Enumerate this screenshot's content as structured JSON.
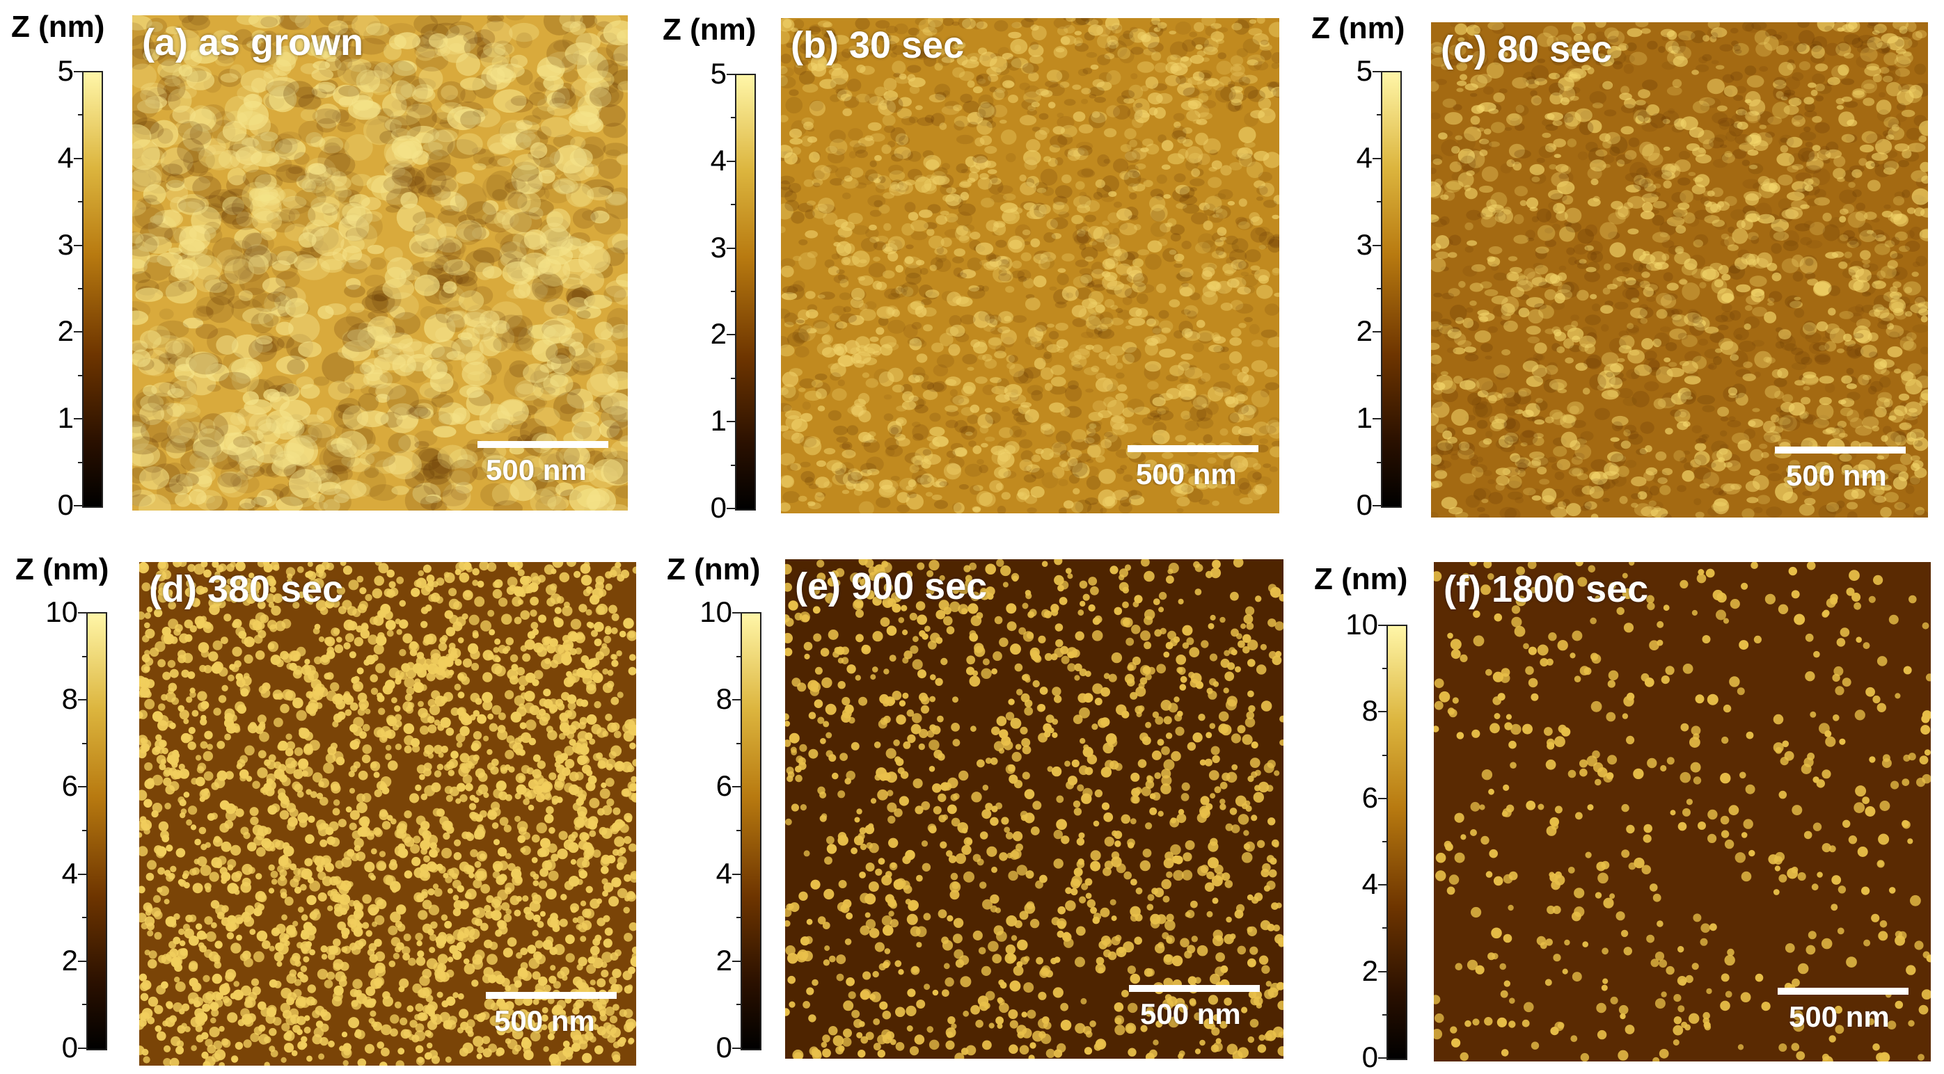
{
  "colorbar_label": "Z (nm)",
  "scale_label": "500 nm",
  "panels": [
    {
      "id": "a",
      "label": "(a) as grown",
      "zmax": 5,
      "ticks": [
        "5",
        "4",
        "3",
        "2",
        "1",
        "0"
      ],
      "texture": "terrace",
      "base_color": "#d9aa3c",
      "particle_color": "#f5e389",
      "particle_density": 0.0
    },
    {
      "id": "b",
      "label": "(b) 30 sec",
      "zmax": 5,
      "ticks": [
        "5",
        "4",
        "3",
        "2",
        "1",
        "0"
      ],
      "texture": "grainy",
      "base_color": "#c18a1f",
      "particle_color": "#f0d26a",
      "particle_density": 0.15
    },
    {
      "id": "c",
      "label": "(c) 80 sec",
      "zmax": 5,
      "ticks": [
        "5",
        "4",
        "3",
        "2",
        "1",
        "0"
      ],
      "texture": "grainy",
      "base_color": "#a46a12",
      "particle_color": "#f3d66b",
      "particle_density": 0.35
    },
    {
      "id": "d",
      "label": "(d) 380 sec",
      "zmax": 10,
      "ticks": [
        "10",
        "8",
        "6",
        "4",
        "2",
        "0"
      ],
      "texture": "dense",
      "base_color": "#7a4407",
      "particle_color": "#f1ce5d",
      "particle_density": 0.9
    },
    {
      "id": "e",
      "label": "(e) 900 sec",
      "zmax": 10,
      "ticks": [
        "10",
        "8",
        "6",
        "4",
        "2",
        "0"
      ],
      "texture": "islands",
      "base_color": "#4e2400",
      "particle_color": "#e9c04a",
      "particle_density": 0.45
    },
    {
      "id": "f",
      "label": "(f) 1800 sec",
      "zmax": 10,
      "ticks": [
        "10",
        "8",
        "6",
        "4",
        "2",
        "0"
      ],
      "texture": "islands",
      "base_color": "#5a2a02",
      "particle_color": "#e8bf48",
      "particle_density": 0.18
    }
  ]
}
